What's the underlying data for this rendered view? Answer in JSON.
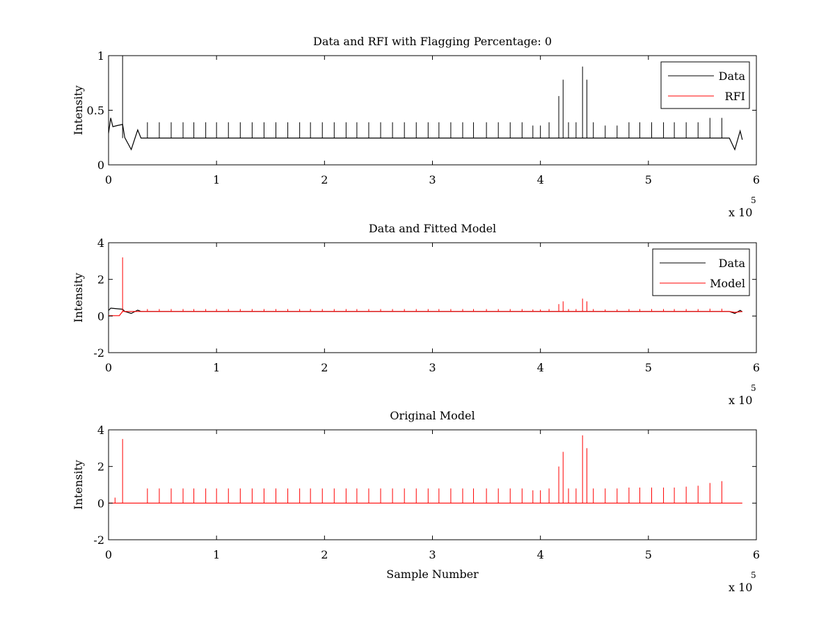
{
  "figure": {
    "background": "#ffffff",
    "text_color": "#000000"
  },
  "chart_data": [
    {
      "type": "line",
      "title": "Data and RFI with Flagging Percentage: 0",
      "xlabel": "",
      "ylabel": "Intensity",
      "xlim": [
        0,
        6
      ],
      "ylim": [
        0,
        1
      ],
      "xticks": [
        0,
        1,
        2,
        3,
        4,
        5,
        6
      ],
      "yticks": [
        0,
        0.5,
        1
      ],
      "x_multiplier": {
        "base": "x 10",
        "exponent": "5"
      },
      "legend": {
        "position": "top-right",
        "entries": [
          "Data",
          "RFI"
        ]
      },
      "grid": false,
      "series": [
        {
          "name": "Data",
          "color": "#000000",
          "baseline": 0.245,
          "x_end": 5.87,
          "features": [
            {
              "x": 0.0,
              "y": 0.29
            },
            {
              "x": 0.02,
              "y": 0.43
            },
            {
              "x": 0.04,
              "y": 0.35
            },
            {
              "x": 0.08,
              "y": 0.36
            },
            {
              "x": 0.13,
              "y": 0.37
            },
            {
              "x": 0.15,
              "y": 0.25
            },
            {
              "x": 0.21,
              "y": 0.14
            },
            {
              "x": 0.27,
              "y": 0.32
            },
            {
              "x": 0.3,
              "y": 0.245
            },
            {
              "x": 5.75,
              "y": 0.245
            },
            {
              "x": 5.8,
              "y": 0.14
            },
            {
              "x": 5.85,
              "y": 0.31
            },
            {
              "x": 5.87,
              "y": 0.23
            }
          ],
          "spikes": [
            {
              "x": 0.13,
              "y": 1.0
            },
            {
              "x": 0.36,
              "y": 0.39
            },
            {
              "x": 0.47,
              "y": 0.39
            },
            {
              "x": 0.58,
              "y": 0.39
            },
            {
              "x": 0.69,
              "y": 0.39
            },
            {
              "x": 0.79,
              "y": 0.39
            },
            {
              "x": 0.9,
              "y": 0.39
            },
            {
              "x": 1.0,
              "y": 0.39
            },
            {
              "x": 1.11,
              "y": 0.39
            },
            {
              "x": 1.22,
              "y": 0.39
            },
            {
              "x": 1.33,
              "y": 0.39
            },
            {
              "x": 1.44,
              "y": 0.39
            },
            {
              "x": 1.55,
              "y": 0.39
            },
            {
              "x": 1.66,
              "y": 0.39
            },
            {
              "x": 1.77,
              "y": 0.39
            },
            {
              "x": 1.87,
              "y": 0.39
            },
            {
              "x": 1.98,
              "y": 0.39
            },
            {
              "x": 2.09,
              "y": 0.39
            },
            {
              "x": 2.2,
              "y": 0.39
            },
            {
              "x": 2.3,
              "y": 0.39
            },
            {
              "x": 2.41,
              "y": 0.39
            },
            {
              "x": 2.52,
              "y": 0.39
            },
            {
              "x": 2.63,
              "y": 0.39
            },
            {
              "x": 2.74,
              "y": 0.39
            },
            {
              "x": 2.85,
              "y": 0.39
            },
            {
              "x": 2.96,
              "y": 0.39
            },
            {
              "x": 3.06,
              "y": 0.39
            },
            {
              "x": 3.17,
              "y": 0.39
            },
            {
              "x": 3.28,
              "y": 0.39
            },
            {
              "x": 3.38,
              "y": 0.39
            },
            {
              "x": 3.5,
              "y": 0.39
            },
            {
              "x": 3.61,
              "y": 0.39
            },
            {
              "x": 3.72,
              "y": 0.39
            },
            {
              "x": 3.83,
              "y": 0.39
            },
            {
              "x": 3.93,
              "y": 0.36
            },
            {
              "x": 4.0,
              "y": 0.36
            },
            {
              "x": 4.08,
              "y": 0.39
            },
            {
              "x": 4.17,
              "y": 0.63
            },
            {
              "x": 4.21,
              "y": 0.78
            },
            {
              "x": 4.26,
              "y": 0.39
            },
            {
              "x": 4.33,
              "y": 0.39
            },
            {
              "x": 4.39,
              "y": 0.9
            },
            {
              "x": 4.43,
              "y": 0.78
            },
            {
              "x": 4.49,
              "y": 0.39
            },
            {
              "x": 4.6,
              "y": 0.36
            },
            {
              "x": 4.71,
              "y": 0.36
            },
            {
              "x": 4.82,
              "y": 0.39
            },
            {
              "x": 4.92,
              "y": 0.39
            },
            {
              "x": 5.03,
              "y": 0.39
            },
            {
              "x": 5.14,
              "y": 0.39
            },
            {
              "x": 5.24,
              "y": 0.39
            },
            {
              "x": 5.35,
              "y": 0.39
            },
            {
              "x": 5.46,
              "y": 0.39
            },
            {
              "x": 5.57,
              "y": 0.43
            },
            {
              "x": 5.68,
              "y": 0.43
            }
          ]
        },
        {
          "name": "RFI",
          "color": "#ff0000",
          "visible_in_plot": false
        }
      ]
    },
    {
      "type": "line",
      "title": "Data and Fitted Model",
      "xlabel": "",
      "ylabel": "Intensity",
      "xlim": [
        0,
        6
      ],
      "ylim": [
        -2,
        4
      ],
      "xticks": [
        0,
        1,
        2,
        3,
        4,
        5,
        6
      ],
      "yticks": [
        -2,
        0,
        2,
        4
      ],
      "x_multiplier": {
        "base": "x 10",
        "exponent": "5"
      },
      "legend": {
        "position": "top-right",
        "entries": [
          "Data",
          "Model"
        ]
      },
      "grid": false,
      "series": [
        {
          "name": "Data",
          "color": "#000000",
          "baseline": 0.25,
          "x_end": 5.87,
          "features": [
            {
              "x": 0.0,
              "y": 0.3
            },
            {
              "x": 0.02,
              "y": 0.43
            },
            {
              "x": 0.13,
              "y": 0.37
            },
            {
              "x": 0.15,
              "y": 0.25
            },
            {
              "x": 0.21,
              "y": 0.14
            },
            {
              "x": 0.27,
              "y": 0.32
            },
            {
              "x": 0.3,
              "y": 0.25
            },
            {
              "x": 5.75,
              "y": 0.25
            },
            {
              "x": 5.8,
              "y": 0.14
            },
            {
              "x": 5.85,
              "y": 0.31
            },
            {
              "x": 5.87,
              "y": 0.23
            }
          ],
          "spikes": []
        },
        {
          "name": "Model",
          "color": "#ff0000",
          "baseline": 0.25,
          "x_end": 5.87,
          "features": [
            {
              "x": 0.0,
              "y": 0.02
            },
            {
              "x": 0.1,
              "y": 0.02
            },
            {
              "x": 0.13,
              "y": 0.25
            },
            {
              "x": 5.75,
              "y": 0.25
            },
            {
              "x": 5.8,
              "y": 0.2
            },
            {
              "x": 5.87,
              "y": 0.25
            }
          ],
          "spikes": [
            {
              "x": 0.13,
              "y": 3.2
            },
            {
              "x": 0.36,
              "y": 0.38
            },
            {
              "x": 0.47,
              "y": 0.38
            },
            {
              "x": 0.58,
              "y": 0.38
            },
            {
              "x": 0.69,
              "y": 0.38
            },
            {
              "x": 0.79,
              "y": 0.38
            },
            {
              "x": 0.9,
              "y": 0.38
            },
            {
              "x": 1.0,
              "y": 0.38
            },
            {
              "x": 1.11,
              "y": 0.38
            },
            {
              "x": 1.22,
              "y": 0.38
            },
            {
              "x": 1.33,
              "y": 0.38
            },
            {
              "x": 1.44,
              "y": 0.38
            },
            {
              "x": 1.55,
              "y": 0.38
            },
            {
              "x": 1.66,
              "y": 0.38
            },
            {
              "x": 1.77,
              "y": 0.38
            },
            {
              "x": 1.87,
              "y": 0.38
            },
            {
              "x": 1.98,
              "y": 0.38
            },
            {
              "x": 2.09,
              "y": 0.38
            },
            {
              "x": 2.2,
              "y": 0.38
            },
            {
              "x": 2.3,
              "y": 0.38
            },
            {
              "x": 2.41,
              "y": 0.38
            },
            {
              "x": 2.52,
              "y": 0.38
            },
            {
              "x": 2.63,
              "y": 0.38
            },
            {
              "x": 2.74,
              "y": 0.38
            },
            {
              "x": 2.85,
              "y": 0.38
            },
            {
              "x": 2.96,
              "y": 0.38
            },
            {
              "x": 3.06,
              "y": 0.38
            },
            {
              "x": 3.17,
              "y": 0.38
            },
            {
              "x": 3.28,
              "y": 0.38
            },
            {
              "x": 3.38,
              "y": 0.38
            },
            {
              "x": 3.5,
              "y": 0.38
            },
            {
              "x": 3.61,
              "y": 0.38
            },
            {
              "x": 3.72,
              "y": 0.38
            },
            {
              "x": 3.83,
              "y": 0.38
            },
            {
              "x": 3.93,
              "y": 0.36
            },
            {
              "x": 4.0,
              "y": 0.36
            },
            {
              "x": 4.08,
              "y": 0.38
            },
            {
              "x": 4.17,
              "y": 0.65
            },
            {
              "x": 4.21,
              "y": 0.8
            },
            {
              "x": 4.26,
              "y": 0.38
            },
            {
              "x": 4.33,
              "y": 0.38
            },
            {
              "x": 4.39,
              "y": 0.95
            },
            {
              "x": 4.43,
              "y": 0.8
            },
            {
              "x": 4.49,
              "y": 0.38
            },
            {
              "x": 4.6,
              "y": 0.36
            },
            {
              "x": 4.71,
              "y": 0.36
            },
            {
              "x": 4.82,
              "y": 0.38
            },
            {
              "x": 4.92,
              "y": 0.38
            },
            {
              "x": 5.03,
              "y": 0.38
            },
            {
              "x": 5.14,
              "y": 0.38
            },
            {
              "x": 5.24,
              "y": 0.38
            },
            {
              "x": 5.35,
              "y": 0.38
            },
            {
              "x": 5.46,
              "y": 0.38
            },
            {
              "x": 5.57,
              "y": 0.4
            },
            {
              "x": 5.68,
              "y": 0.4
            }
          ]
        }
      ]
    },
    {
      "type": "line",
      "title": "Original Model",
      "xlabel": "Sample Number",
      "ylabel": "Intensity",
      "xlim": [
        0,
        6
      ],
      "ylim": [
        -2,
        4
      ],
      "xticks": [
        0,
        1,
        2,
        3,
        4,
        5,
        6
      ],
      "yticks": [
        -2,
        0,
        2,
        4
      ],
      "x_multiplier": {
        "base": "x 10",
        "exponent": "5"
      },
      "legend": null,
      "grid": false,
      "series": [
        {
          "name": "",
          "color": "#ff0000",
          "baseline": 0.0,
          "x_end": 5.87,
          "features": [],
          "spikes": [
            {
              "x": 0.06,
              "y": 0.3
            },
            {
              "x": 0.13,
              "y": 3.5
            },
            {
              "x": 0.36,
              "y": 0.8
            },
            {
              "x": 0.47,
              "y": 0.8
            },
            {
              "x": 0.58,
              "y": 0.8
            },
            {
              "x": 0.69,
              "y": 0.8
            },
            {
              "x": 0.79,
              "y": 0.8
            },
            {
              "x": 0.9,
              "y": 0.8
            },
            {
              "x": 1.0,
              "y": 0.8
            },
            {
              "x": 1.11,
              "y": 0.8
            },
            {
              "x": 1.22,
              "y": 0.8
            },
            {
              "x": 1.33,
              "y": 0.8
            },
            {
              "x": 1.44,
              "y": 0.8
            },
            {
              "x": 1.55,
              "y": 0.8
            },
            {
              "x": 1.66,
              "y": 0.8
            },
            {
              "x": 1.77,
              "y": 0.8
            },
            {
              "x": 1.87,
              "y": 0.8
            },
            {
              "x": 1.98,
              "y": 0.8
            },
            {
              "x": 2.09,
              "y": 0.8
            },
            {
              "x": 2.2,
              "y": 0.8
            },
            {
              "x": 2.3,
              "y": 0.8
            },
            {
              "x": 2.41,
              "y": 0.8
            },
            {
              "x": 2.52,
              "y": 0.8
            },
            {
              "x": 2.63,
              "y": 0.8
            },
            {
              "x": 2.74,
              "y": 0.8
            },
            {
              "x": 2.85,
              "y": 0.8
            },
            {
              "x": 2.96,
              "y": 0.8
            },
            {
              "x": 3.06,
              "y": 0.8
            },
            {
              "x": 3.17,
              "y": 0.8
            },
            {
              "x": 3.28,
              "y": 0.8
            },
            {
              "x": 3.38,
              "y": 0.8
            },
            {
              "x": 3.5,
              "y": 0.8
            },
            {
              "x": 3.61,
              "y": 0.8
            },
            {
              "x": 3.72,
              "y": 0.8
            },
            {
              "x": 3.83,
              "y": 0.8
            },
            {
              "x": 3.93,
              "y": 0.7
            },
            {
              "x": 4.0,
              "y": 0.7
            },
            {
              "x": 4.08,
              "y": 0.8
            },
            {
              "x": 4.17,
              "y": 2.0
            },
            {
              "x": 4.21,
              "y": 2.8
            },
            {
              "x": 4.26,
              "y": 0.8
            },
            {
              "x": 4.33,
              "y": 0.8
            },
            {
              "x": 4.39,
              "y": 3.7
            },
            {
              "x": 4.43,
              "y": 3.0
            },
            {
              "x": 4.49,
              "y": 0.8
            },
            {
              "x": 4.6,
              "y": 0.8
            },
            {
              "x": 4.71,
              "y": 0.8
            },
            {
              "x": 4.82,
              "y": 0.85
            },
            {
              "x": 4.92,
              "y": 0.85
            },
            {
              "x": 5.03,
              "y": 0.85
            },
            {
              "x": 5.14,
              "y": 0.85
            },
            {
              "x": 5.24,
              "y": 0.85
            },
            {
              "x": 5.35,
              "y": 0.9
            },
            {
              "x": 5.46,
              "y": 0.95
            },
            {
              "x": 5.57,
              "y": 1.1
            },
            {
              "x": 5.68,
              "y": 1.2
            }
          ]
        }
      ]
    }
  ]
}
